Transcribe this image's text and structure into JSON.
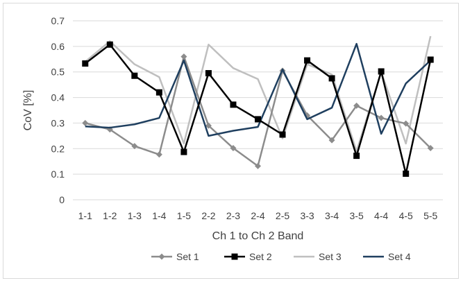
{
  "chart_data": {
    "type": "line",
    "title": "",
    "xlabel": "Ch 1 to Ch 2 Band",
    "ylabel": "CoV [%]",
    "ylim": [
      0,
      0.7
    ],
    "yticks": [
      0,
      0.1,
      0.2,
      0.3,
      0.4,
      0.5,
      0.6,
      0.7
    ],
    "ytick_labels": [
      "0",
      "0.1",
      "0.2",
      "0.3",
      "0.4",
      "0.5",
      "0.6",
      "0.7"
    ],
    "grid": "horizontal",
    "legend_position": "bottom",
    "categories": [
      "1-1",
      "1-2",
      "1-3",
      "1-4",
      "1-5",
      "2-2",
      "2-3",
      "2-4",
      "2-5",
      "3-3",
      "3-4",
      "3-5",
      "4-4",
      "4-5",
      "5-5"
    ],
    "series": [
      {
        "name": "Set 1",
        "color": "#8c8c8c",
        "marker": "diamond",
        "values": [
          0.3,
          0.275,
          0.21,
          0.177,
          0.56,
          0.29,
          0.202,
          0.132,
          0.505,
          0.33,
          0.233,
          0.368,
          0.32,
          0.298,
          0.202
        ]
      },
      {
        "name": "Set 2",
        "color": "#000000",
        "marker": "square",
        "values": [
          0.533,
          0.607,
          0.485,
          0.42,
          0.187,
          0.495,
          0.372,
          0.315,
          0.255,
          0.545,
          0.475,
          0.172,
          0.502,
          0.102,
          0.548
        ]
      },
      {
        "name": "Set 3",
        "color": "#bfbfbf",
        "marker": "none",
        "values": [
          0.54,
          0.62,
          0.53,
          0.48,
          0.22,
          0.607,
          0.515,
          0.472,
          0.24,
          0.53,
          0.49,
          0.19,
          0.5,
          0.22,
          0.64
        ]
      },
      {
        "name": "Set 4",
        "color": "#1f3f5f",
        "marker": "none",
        "values": [
          0.287,
          0.282,
          0.295,
          0.32,
          0.545,
          0.25,
          0.27,
          0.285,
          0.51,
          0.315,
          0.36,
          0.61,
          0.258,
          0.455,
          0.545
        ]
      }
    ]
  }
}
